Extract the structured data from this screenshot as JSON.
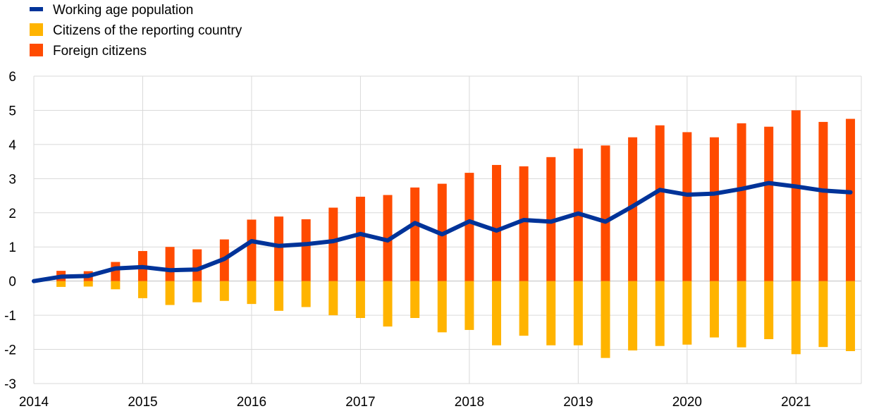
{
  "chart_data": {
    "type": "bar",
    "subtype": "stacked-bar-with-line",
    "title": "",
    "xlabel": "",
    "ylabel": "",
    "ylim": [
      -3,
      6
    ],
    "yticks": [
      6,
      5,
      4,
      3,
      2,
      1,
      0,
      -1,
      -2,
      -3
    ],
    "xlim": [
      2014,
      2021.6
    ],
    "xticks": [
      "2014",
      "2015",
      "2016",
      "2017",
      "2018",
      "2019",
      "2020",
      "2021"
    ],
    "grid": "on",
    "legend_position": "top-left",
    "x": [
      2014.0,
      2014.25,
      2014.5,
      2014.75,
      2015.0,
      2015.25,
      2015.5,
      2015.75,
      2016.0,
      2016.25,
      2016.5,
      2016.75,
      2017.0,
      2017.25,
      2017.5,
      2017.75,
      2018.0,
      2018.25,
      2018.5,
      2018.75,
      2019.0,
      2019.25,
      2019.5,
      2019.75,
      2020.0,
      2020.25,
      2020.5,
      2020.75,
      2021.0,
      2021.25,
      2021.5
    ],
    "series": [
      {
        "name": "Working age population",
        "kind": "line",
        "color": "#003399",
        "values": [
          0.0,
          0.13,
          0.15,
          0.37,
          0.41,
          0.32,
          0.34,
          0.65,
          1.17,
          1.03,
          1.08,
          1.17,
          1.38,
          1.19,
          1.7,
          1.37,
          1.75,
          1.48,
          1.79,
          1.74,
          1.98,
          1.74,
          2.19,
          2.67,
          2.53,
          2.56,
          2.7,
          2.87,
          2.77,
          2.65,
          2.6
        ]
      },
      {
        "name": "Citizens of the reporting country",
        "kind": "bar",
        "color": "#FFB400",
        "values": [
          null,
          -0.17,
          -0.16,
          -0.24,
          -0.5,
          -0.7,
          -0.62,
          -0.58,
          -0.67,
          -0.87,
          -0.76,
          -1.0,
          -1.08,
          -1.33,
          -1.08,
          -1.5,
          -1.43,
          -1.88,
          -1.6,
          -1.88,
          -1.88,
          -2.25,
          -2.03,
          -1.9,
          -1.86,
          -1.65,
          -1.94,
          -1.7,
          -2.14,
          -1.93,
          -2.05
        ]
      },
      {
        "name": "Foreign citizens",
        "kind": "bar",
        "color": "#FF4B00",
        "values": [
          null,
          0.3,
          0.29,
          0.56,
          0.88,
          1.0,
          0.93,
          1.22,
          1.8,
          1.89,
          1.81,
          2.15,
          2.47,
          2.52,
          2.74,
          2.85,
          3.17,
          3.4,
          3.36,
          3.63,
          3.88,
          3.97,
          4.21,
          4.56,
          4.36,
          4.21,
          4.62,
          4.52,
          5.0,
          4.66,
          4.75
        ]
      }
    ]
  }
}
